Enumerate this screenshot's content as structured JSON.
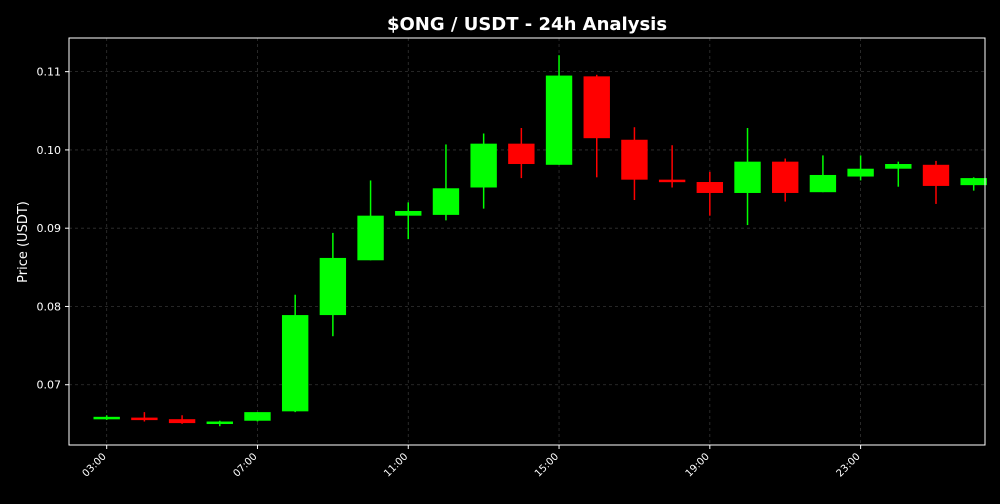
{
  "chart_data": {
    "type": "candlestick",
    "title": "$ONG / USDT - 24h Analysis",
    "xlabel": "",
    "ylabel": "Price (USDT)",
    "xlim": [
      2.0,
      26.3
    ],
    "ylim": [
      0.0623,
      0.1143
    ],
    "x_ticks": [
      {
        "value": 3,
        "label": "03:00"
      },
      {
        "value": 7,
        "label": "07:00"
      },
      {
        "value": 11,
        "label": "11:00"
      },
      {
        "value": 15,
        "label": "15:00"
      },
      {
        "value": 19,
        "label": "19:00"
      },
      {
        "value": 23,
        "label": "23:00"
      }
    ],
    "y_ticks": [
      {
        "value": 0.07,
        "label": "0.07"
      },
      {
        "value": 0.08,
        "label": "0.08"
      },
      {
        "value": 0.09,
        "label": "0.09"
      },
      {
        "value": 0.1,
        "label": "0.10"
      },
      {
        "value": 0.11,
        "label": "0.11"
      }
    ],
    "grid": true,
    "colors": {
      "up": "#00ff00",
      "down": "#ff0000",
      "background": "#000000",
      "axes": "#ffffff",
      "grid": "#333333"
    },
    "candles": [
      {
        "x": 3,
        "open": 0.0656,
        "high": 0.0661,
        "low": 0.0655,
        "close": 0.0659
      },
      {
        "x": 4,
        "open": 0.0658,
        "high": 0.0665,
        "low": 0.0653,
        "close": 0.0657
      },
      {
        "x": 5,
        "open": 0.0656,
        "high": 0.0661,
        "low": 0.065,
        "close": 0.0651
      },
      {
        "x": 6,
        "open": 0.065,
        "high": 0.0654,
        "low": 0.0647,
        "close": 0.0653
      },
      {
        "x": 7,
        "open": 0.0654,
        "high": 0.0665,
        "low": 0.0653,
        "close": 0.0665
      },
      {
        "x": 8,
        "open": 0.0666,
        "high": 0.0815,
        "low": 0.0665,
        "close": 0.0789
      },
      {
        "x": 9,
        "open": 0.0789,
        "high": 0.0894,
        "low": 0.0762,
        "close": 0.0862
      },
      {
        "x": 10,
        "open": 0.0859,
        "high": 0.0961,
        "low": 0.0859,
        "close": 0.0916
      },
      {
        "x": 11,
        "open": 0.0916,
        "high": 0.0933,
        "low": 0.0886,
        "close": 0.0922
      },
      {
        "x": 12,
        "open": 0.0917,
        "high": 0.1007,
        "low": 0.091,
        "close": 0.0951
      },
      {
        "x": 13,
        "open": 0.0952,
        "high": 0.1021,
        "low": 0.0925,
        "close": 0.1008
      },
      {
        "x": 14,
        "open": 0.1008,
        "high": 0.1028,
        "low": 0.0964,
        "close": 0.0982
      },
      {
        "x": 15,
        "open": 0.0981,
        "high": 0.1121,
        "low": 0.0981,
        "close": 0.1095
      },
      {
        "x": 16,
        "open": 0.1094,
        "high": 0.1096,
        "low": 0.0965,
        "close": 0.1015
      },
      {
        "x": 17,
        "open": 0.1013,
        "high": 0.1029,
        "low": 0.0936,
        "close": 0.0962
      },
      {
        "x": 18,
        "open": 0.0962,
        "high": 0.1006,
        "low": 0.0952,
        "close": 0.096
      },
      {
        "x": 19,
        "open": 0.0959,
        "high": 0.0972,
        "low": 0.0916,
        "close": 0.0945
      },
      {
        "x": 20,
        "open": 0.0945,
        "high": 0.1028,
        "low": 0.0904,
        "close": 0.0985
      },
      {
        "x": 21,
        "open": 0.0985,
        "high": 0.0989,
        "low": 0.0934,
        "close": 0.0945
      },
      {
        "x": 22,
        "open": 0.0946,
        "high": 0.0993,
        "low": 0.0946,
        "close": 0.0968
      },
      {
        "x": 23,
        "open": 0.0966,
        "high": 0.0993,
        "low": 0.0961,
        "close": 0.0976
      },
      {
        "x": 24,
        "open": 0.0976,
        "high": 0.0985,
        "low": 0.0953,
        "close": 0.0982
      },
      {
        "x": 25,
        "open": 0.0981,
        "high": 0.0986,
        "low": 0.0931,
        "close": 0.0954
      },
      {
        "x": 26,
        "open": 0.0955,
        "high": 0.0965,
        "low": 0.0948,
        "close": 0.0964
      }
    ]
  }
}
